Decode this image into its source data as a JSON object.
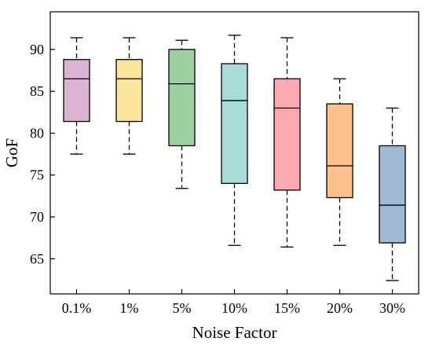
{
  "chart_data": {
    "type": "box",
    "title": "",
    "xlabel": "Noise Factor",
    "ylabel": "GoF",
    "categories": [
      "0.1%",
      "1%",
      "5%",
      "10%",
      "15%",
      "20%",
      "30%"
    ],
    "ylim": [
      60.8,
      94.5
    ],
    "yticks": [
      65,
      70,
      75,
      80,
      85,
      90
    ],
    "grid": false,
    "legend": "none",
    "boxes": [
      {
        "category": "0.1%",
        "whisker_low": 77.5,
        "q1": 81.4,
        "median": 86.5,
        "q3": 88.8,
        "whisker_high": 91.4,
        "color": "#dbb4d4"
      },
      {
        "category": "1%",
        "whisker_low": 77.5,
        "q1": 81.4,
        "median": 86.5,
        "q3": 88.8,
        "whisker_high": 91.4,
        "color": "#fbe59a"
      },
      {
        "category": "5%",
        "whisker_low": 73.4,
        "q1": 78.5,
        "median": 85.9,
        "q3": 90.0,
        "whisker_high": 91.1,
        "color": "#9dd1a2"
      },
      {
        "category": "10%",
        "whisker_low": 66.6,
        "q1": 74.0,
        "median": 83.9,
        "q3": 88.3,
        "whisker_high": 91.7,
        "color": "#a8dcd6"
      },
      {
        "category": "15%",
        "whisker_low": 66.4,
        "q1": 73.2,
        "median": 83.0,
        "q3": 86.5,
        "whisker_high": 91.4,
        "color": "#faa9b1"
      },
      {
        "category": "20%",
        "whisker_low": 66.6,
        "q1": 72.3,
        "median": 76.1,
        "q3": 83.5,
        "whisker_high": 86.5,
        "color": "#fdc28c"
      },
      {
        "category": "30%",
        "whisker_low": 62.4,
        "q1": 66.9,
        "median": 71.4,
        "q3": 78.5,
        "whisker_high": 83.0,
        "color": "#a0bad6"
      }
    ]
  }
}
